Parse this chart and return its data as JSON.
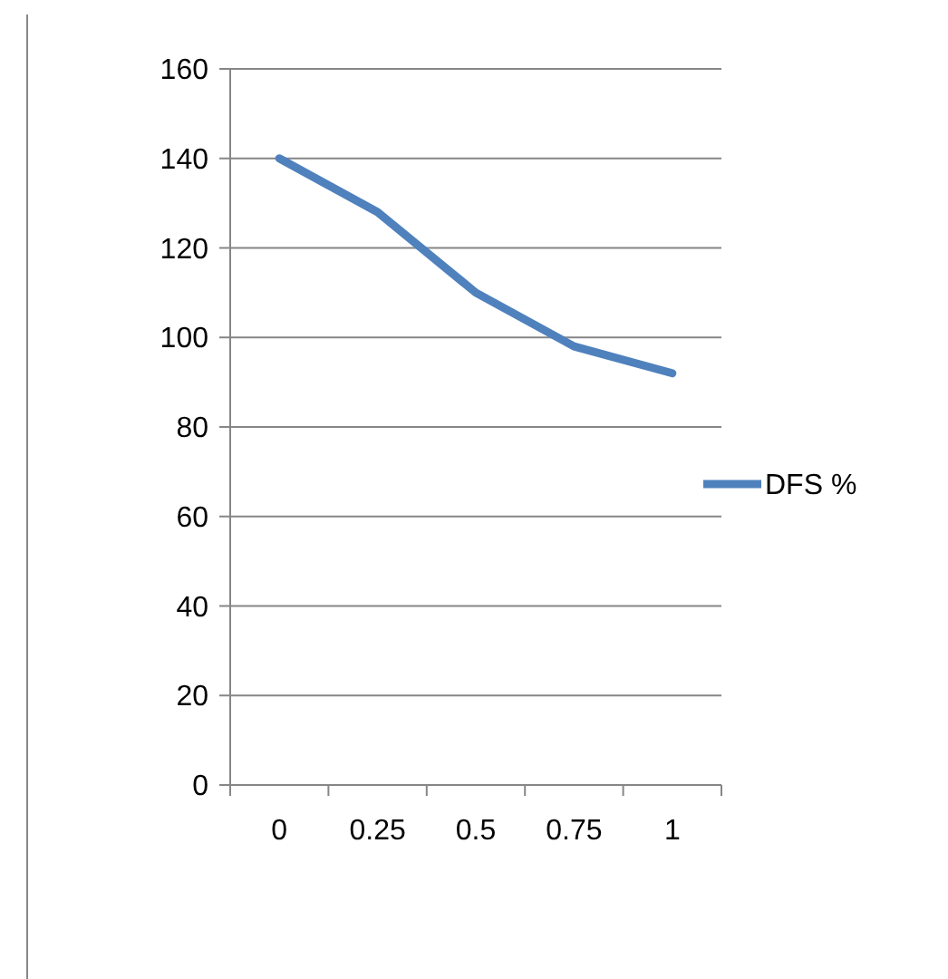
{
  "chart_data": {
    "type": "line",
    "categories": [
      "0",
      "0.25",
      "0.5",
      "0.75",
      "1"
    ],
    "series": [
      {
        "name": "DFS %",
        "color": "#4f81bd",
        "values": [
          140,
          128,
          110,
          98,
          92
        ]
      }
    ],
    "ylim": [
      0,
      160
    ],
    "yticks": [
      0,
      20,
      40,
      60,
      80,
      100,
      120,
      140,
      160
    ],
    "grid": "y",
    "legend": "right",
    "marker": "none"
  }
}
